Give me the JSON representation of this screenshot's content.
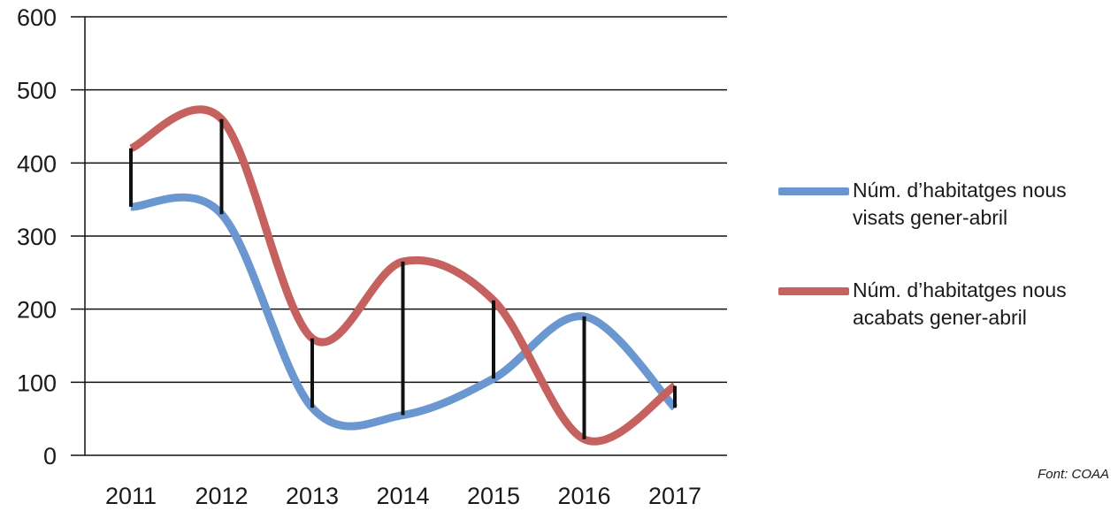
{
  "chart_data": {
    "type": "line",
    "categories": [
      "2011",
      "2012",
      "2013",
      "2014",
      "2015",
      "2016",
      "2017"
    ],
    "series": [
      {
        "name": "Núm. d’habitatges nous visats gener-abril",
        "color": "#6a97cf",
        "values": [
          340,
          330,
          65,
          55,
          105,
          190,
          65
        ]
      },
      {
        "name": "Núm. d’habitatges nous acabats gener-abril",
        "color": "#c5625f",
        "values": [
          420,
          460,
          160,
          265,
          212,
          22,
          95
        ]
      }
    ],
    "y_ticks": [
      0,
      100,
      200,
      300,
      400,
      500,
      600
    ],
    "ylim": [
      0,
      600
    ],
    "grid": true,
    "legend": "right",
    "connector_color": "#111111",
    "source": "Font: COAA"
  }
}
